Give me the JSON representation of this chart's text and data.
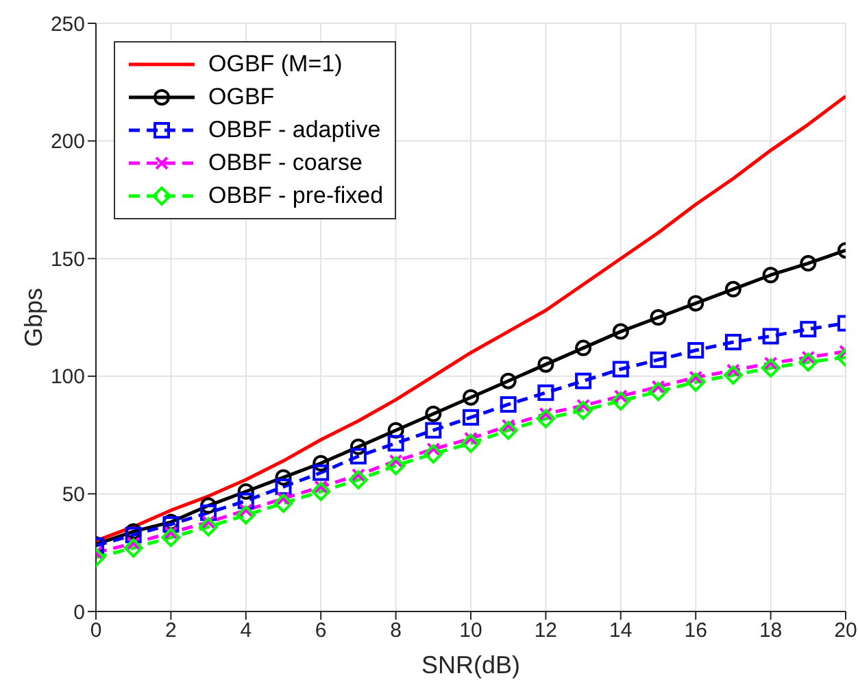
{
  "chart_data": {
    "type": "line",
    "xlabel": "SNR(dB)",
    "ylabel": "Gbps",
    "x": [
      0,
      1,
      2,
      3,
      4,
      5,
      6,
      7,
      8,
      9,
      10,
      11,
      12,
      13,
      14,
      15,
      16,
      17,
      18,
      19,
      20
    ],
    "xlim": [
      0,
      20
    ],
    "xticks": [
      0,
      2,
      4,
      6,
      8,
      10,
      12,
      14,
      16,
      18,
      20
    ],
    "ylim": [
      0,
      250
    ],
    "yticks": [
      0,
      50,
      100,
      150,
      200,
      250
    ],
    "grid": true,
    "legend": "top left",
    "series": [
      {
        "name": "OGBF (M=1)",
        "color": "#ff0000",
        "marker": "none",
        "line_style": "solid",
        "values": [
          30,
          36,
          43,
          49,
          56,
          64,
          73,
          81,
          90,
          100,
          110,
          119,
          128,
          139,
          150,
          161,
          173,
          184,
          196,
          207,
          219
        ]
      },
      {
        "name": "OGBF",
        "color": "#000000",
        "marker": "circle",
        "line_style": "solid",
        "values": [
          28.5,
          34,
          38,
          45,
          51,
          57,
          63,
          70,
          77,
          84,
          91,
          98,
          105,
          112,
          119,
          125,
          131,
          137,
          143,
          148,
          153.5
        ]
      },
      {
        "name": "OBBF - adaptive",
        "color": "#0000ff",
        "marker": "square",
        "line_style": "dashed",
        "values": [
          28,
          32.5,
          37,
          42,
          47,
          53,
          59,
          66,
          71.5,
          77,
          82.5,
          88,
          93,
          98,
          103,
          107,
          111,
          114.5,
          117,
          120,
          122.5
        ]
      },
      {
        "name": "OBBF - coarse",
        "color": "#ff00ff",
        "marker": "cross",
        "line_style": "dashed",
        "values": [
          25,
          29,
          33.5,
          38,
          43,
          48,
          53,
          58,
          64,
          69,
          73.5,
          79,
          84,
          87.5,
          91.5,
          95.5,
          99.5,
          102.5,
          105.5,
          108,
          110.5
        ]
      },
      {
        "name": "OBBF - pre-fixed",
        "color": "#00ff00",
        "marker": "diamond",
        "line_style": "dashed",
        "values": [
          23,
          27,
          31.5,
          36,
          41,
          46,
          51,
          56,
          62,
          67,
          71.5,
          77,
          82,
          85.5,
          89.5,
          93.5,
          97.5,
          100.5,
          103.5,
          106,
          108
        ]
      }
    ]
  }
}
